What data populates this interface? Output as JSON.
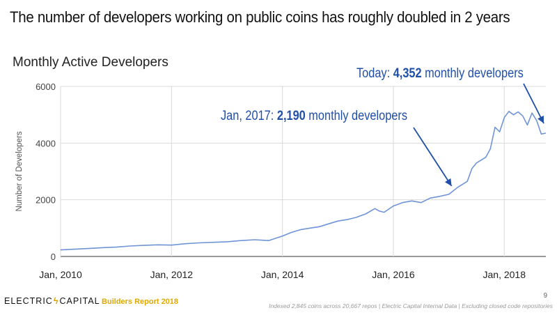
{
  "headline": "The number of developers working on public coins has roughly doubled in 2 years",
  "chart_data": {
    "type": "line",
    "title": "Monthly Active Developers",
    "xlabel": "",
    "ylabel": "Number of Developers",
    "x_ticks": [
      "Jan, 2010",
      "Jan, 2012",
      "Jan, 2014",
      "Jan, 2016",
      "Jan, 2018"
    ],
    "y_ticks": [
      "0",
      "2000",
      "4000",
      "6000"
    ],
    "ylim": [
      0,
      6000
    ],
    "xlim": [
      "2010-01",
      "2018-10"
    ],
    "grid": true,
    "series": [
      {
        "color": "#6f94d6",
        "x": [
          "2010-01",
          "2010-04",
          "2010-07",
          "2010-10",
          "2011-01",
          "2011-04",
          "2011-07",
          "2011-10",
          "2012-01",
          "2012-04",
          "2012-07",
          "2012-10",
          "2013-01",
          "2013-04",
          "2013-07",
          "2013-10",
          "2014-01",
          "2014-03",
          "2014-05",
          "2014-07",
          "2014-09",
          "2014-11",
          "2015-01",
          "2015-03",
          "2015-05",
          "2015-07",
          "2015-09",
          "2015-10",
          "2015-11",
          "2016-01",
          "2016-03",
          "2016-05",
          "2016-07",
          "2016-09",
          "2016-11",
          "2017-01",
          "2017-03",
          "2017-05",
          "2017-06",
          "2017-07",
          "2017-09",
          "2017-10",
          "2017-11",
          "2017-12",
          "2018-01",
          "2018-02",
          "2018-03",
          "2018-04",
          "2018-05",
          "2018-06",
          "2018-07",
          "2018-08",
          "2018-09",
          "2018-10"
        ],
        "values": [
          230,
          255,
          280,
          310,
          330,
          370,
          390,
          410,
          400,
          450,
          480,
          500,
          520,
          560,
          590,
          560,
          720,
          850,
          950,
          1000,
          1050,
          1150,
          1250,
          1300,
          1380,
          1500,
          1690,
          1600,
          1560,
          1780,
          1900,
          1960,
          1900,
          2060,
          2120,
          2190,
          2450,
          2650,
          3100,
          3300,
          3500,
          3800,
          4560,
          4400,
          4900,
          5120,
          5000,
          5100,
          4960,
          4640,
          5060,
          4800,
          4320,
          4352
        ]
      }
    ],
    "annotations": [
      {
        "prefix": "Jan, 2017: ",
        "value": "2,190",
        "suffix": " monthly developers"
      },
      {
        "prefix": "Today: ",
        "value": "4,352",
        "suffix": " monthly developers"
      }
    ]
  },
  "footer": {
    "brand_left": "ELECTRIC",
    "brand_bolt": "ϟ",
    "brand_right": "CAPITAL",
    "report": "Builders Report 2018",
    "page_number": "9",
    "footnote": "Indexed 2,845 coins across 20,667 repos | Electric Capital Internal Data | Excluding closed code repositories"
  }
}
